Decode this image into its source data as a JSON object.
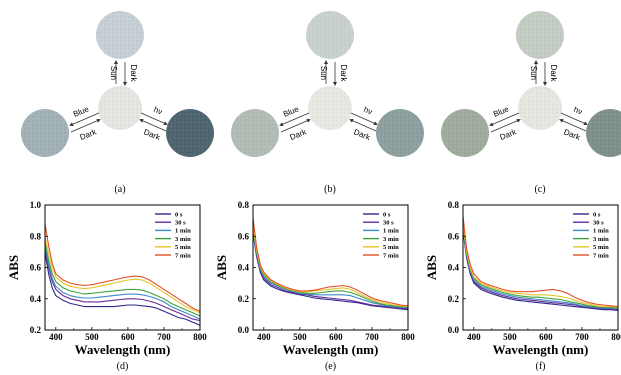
{
  "photo_panels": [
    {
      "label": "(a)",
      "colors": {
        "top": "#c6d0d5",
        "center": "#e5e5e1",
        "left": "#a2b2b7",
        "right": "#4f6670"
      },
      "arrows": {
        "up": "Sun",
        "down": "Dark",
        "left_top": "Blue",
        "left_bottom": "Dark",
        "right_top": "hν",
        "right_bottom": "Dark"
      }
    },
    {
      "label": "(b)",
      "colors": {
        "top": "#c9d2cc",
        "center": "#e8e9e3",
        "left": "#b1bdb5",
        "right": "#8ea0a0"
      },
      "arrows": {
        "up": "Sun",
        "down": "Dark",
        "left_top": "Blue",
        "left_bottom": "Dark",
        "right_top": "hν",
        "right_bottom": "Dark"
      }
    },
    {
      "label": "(c)",
      "colors": {
        "top": "#c4cdc3",
        "center": "#e7e7e2",
        "left": "#a0ad9e",
        "right": "#7f918d"
      },
      "arrows": {
        "up": "Sun",
        "down": "Dark",
        "left_top": "Blue",
        "left_bottom": "Dark",
        "right_top": "hν",
        "right_bottom": "Dark"
      }
    }
  ],
  "chart_data": [
    {
      "type": "line",
      "panel_label": "(d)",
      "xlabel": "Wavelength (nm)",
      "ylabel": "ABS",
      "xlim": [
        370,
        800
      ],
      "ylim": [
        0.2,
        1.0
      ],
      "xticks": [
        "400",
        "500",
        "600",
        "700",
        "800"
      ],
      "yticks": [
        "0.2",
        "0.4",
        "0.6",
        "0.8",
        "1.0"
      ],
      "legend_position": "top-right",
      "x": [
        370,
        380,
        390,
        400,
        420,
        440,
        460,
        480,
        500,
        520,
        540,
        560,
        580,
        600,
        620,
        640,
        660,
        680,
        700,
        720,
        740,
        760,
        780,
        800
      ],
      "series": [
        {
          "name": "0 s",
          "color": "#2b2b8c",
          "values": [
            0.7,
            0.56,
            0.47,
            0.42,
            0.39,
            0.37,
            0.36,
            0.35,
            0.35,
            0.35,
            0.35,
            0.35,
            0.355,
            0.36,
            0.36,
            0.355,
            0.35,
            0.34,
            0.32,
            0.3,
            0.28,
            0.27,
            0.25,
            0.23
          ]
        },
        {
          "name": "30 s",
          "color": "#6a2c9a",
          "values": [
            0.72,
            0.6,
            0.51,
            0.46,
            0.42,
            0.4,
            0.39,
            0.38,
            0.38,
            0.38,
            0.385,
            0.39,
            0.395,
            0.4,
            0.4,
            0.395,
            0.385,
            0.37,
            0.35,
            0.33,
            0.31,
            0.29,
            0.27,
            0.26
          ]
        },
        {
          "name": "1 min",
          "color": "#3f8ac9",
          "values": [
            0.74,
            0.62,
            0.53,
            0.48,
            0.44,
            0.42,
            0.41,
            0.405,
            0.405,
            0.41,
            0.415,
            0.42,
            0.425,
            0.43,
            0.43,
            0.425,
            0.415,
            0.4,
            0.38,
            0.35,
            0.33,
            0.31,
            0.29,
            0.27
          ]
        },
        {
          "name": "3 min",
          "color": "#3ea23a",
          "values": [
            0.76,
            0.65,
            0.56,
            0.51,
            0.47,
            0.45,
            0.44,
            0.43,
            0.435,
            0.44,
            0.445,
            0.45,
            0.455,
            0.46,
            0.46,
            0.455,
            0.44,
            0.42,
            0.4,
            0.37,
            0.35,
            0.33,
            0.31,
            0.29
          ]
        },
        {
          "name": "5 min",
          "color": "#e6c32a",
          "values": [
            0.8,
            0.69,
            0.6,
            0.54,
            0.5,
            0.48,
            0.47,
            0.465,
            0.47,
            0.48,
            0.49,
            0.5,
            0.51,
            0.52,
            0.525,
            0.52,
            0.5,
            0.47,
            0.44,
            0.41,
            0.38,
            0.35,
            0.33,
            0.31
          ]
        },
        {
          "name": "7 min",
          "color": "#e4502a",
          "values": [
            0.88,
            0.74,
            0.63,
            0.56,
            0.52,
            0.5,
            0.49,
            0.485,
            0.49,
            0.5,
            0.51,
            0.52,
            0.53,
            0.54,
            0.545,
            0.54,
            0.52,
            0.49,
            0.46,
            0.43,
            0.4,
            0.37,
            0.34,
            0.32
          ]
        }
      ]
    },
    {
      "type": "line",
      "panel_label": "(e)",
      "xlabel": "Wavelength (nm)",
      "ylabel": "ABS",
      "xlim": [
        370,
        800
      ],
      "ylim": [
        0.0,
        0.8
      ],
      "xticks": [
        "400",
        "500",
        "600",
        "700",
        "800"
      ],
      "yticks": [
        "0.0",
        "0.2",
        "0.4",
        "0.6",
        "0.8"
      ],
      "legend_position": "top-right",
      "x": [
        370,
        380,
        390,
        400,
        420,
        440,
        460,
        480,
        500,
        520,
        540,
        560,
        580,
        600,
        620,
        640,
        660,
        680,
        700,
        720,
        740,
        760,
        780,
        800
      ],
      "series": [
        {
          "name": "0 s",
          "color": "#2b2b8c",
          "values": [
            0.62,
            0.47,
            0.37,
            0.32,
            0.28,
            0.26,
            0.245,
            0.235,
            0.225,
            0.215,
            0.205,
            0.2,
            0.195,
            0.19,
            0.185,
            0.18,
            0.175,
            0.165,
            0.155,
            0.15,
            0.145,
            0.14,
            0.135,
            0.13
          ]
        },
        {
          "name": "30 s",
          "color": "#6a2c9a",
          "values": [
            0.63,
            0.48,
            0.38,
            0.33,
            0.29,
            0.27,
            0.25,
            0.24,
            0.23,
            0.225,
            0.215,
            0.21,
            0.205,
            0.2,
            0.195,
            0.19,
            0.18,
            0.17,
            0.16,
            0.155,
            0.15,
            0.145,
            0.14,
            0.135
          ]
        },
        {
          "name": "1 min",
          "color": "#3f8ac9",
          "values": [
            0.64,
            0.49,
            0.39,
            0.34,
            0.3,
            0.28,
            0.26,
            0.245,
            0.235,
            0.23,
            0.225,
            0.225,
            0.225,
            0.225,
            0.225,
            0.22,
            0.205,
            0.19,
            0.175,
            0.165,
            0.155,
            0.15,
            0.145,
            0.14
          ]
        },
        {
          "name": "3 min",
          "color": "#3ea23a",
          "values": [
            0.65,
            0.5,
            0.4,
            0.35,
            0.31,
            0.285,
            0.265,
            0.25,
            0.24,
            0.235,
            0.235,
            0.24,
            0.245,
            0.25,
            0.25,
            0.24,
            0.225,
            0.205,
            0.185,
            0.17,
            0.16,
            0.155,
            0.15,
            0.145
          ]
        },
        {
          "name": "5 min",
          "color": "#e6c32a",
          "values": [
            0.67,
            0.51,
            0.41,
            0.36,
            0.315,
            0.29,
            0.27,
            0.255,
            0.245,
            0.245,
            0.25,
            0.255,
            0.26,
            0.265,
            0.27,
            0.26,
            0.24,
            0.215,
            0.195,
            0.18,
            0.17,
            0.16,
            0.155,
            0.15
          ]
        },
        {
          "name": "7 min",
          "color": "#e4502a",
          "values": [
            0.72,
            0.53,
            0.42,
            0.37,
            0.32,
            0.295,
            0.275,
            0.26,
            0.25,
            0.25,
            0.255,
            0.265,
            0.275,
            0.28,
            0.285,
            0.275,
            0.255,
            0.23,
            0.205,
            0.19,
            0.18,
            0.17,
            0.16,
            0.155
          ]
        }
      ]
    },
    {
      "type": "line",
      "panel_label": "(f)",
      "xlabel": "Wavelength (nm)",
      "ylabel": "ABS",
      "xlim": [
        370,
        800
      ],
      "ylim": [
        0.0,
        0.8
      ],
      "xticks": [
        "400",
        "500",
        "600",
        "700",
        "800"
      ],
      "yticks": [
        "0.0",
        "0.2",
        "0.4",
        "0.6",
        "0.8"
      ],
      "legend_position": "top-right",
      "x": [
        370,
        380,
        390,
        400,
        420,
        440,
        460,
        480,
        500,
        520,
        540,
        560,
        580,
        600,
        620,
        640,
        660,
        680,
        700,
        720,
        740,
        760,
        780,
        800
      ],
      "series": [
        {
          "name": "0 s",
          "color": "#2b2b8c",
          "values": [
            0.64,
            0.46,
            0.36,
            0.3,
            0.26,
            0.24,
            0.225,
            0.21,
            0.2,
            0.19,
            0.185,
            0.18,
            0.175,
            0.17,
            0.165,
            0.16,
            0.155,
            0.15,
            0.145,
            0.14,
            0.135,
            0.13,
            0.13,
            0.125
          ]
        },
        {
          "name": "30 s",
          "color": "#6a2c9a",
          "values": [
            0.65,
            0.47,
            0.37,
            0.31,
            0.27,
            0.25,
            0.235,
            0.22,
            0.21,
            0.2,
            0.195,
            0.19,
            0.185,
            0.18,
            0.175,
            0.17,
            0.165,
            0.16,
            0.15,
            0.145,
            0.14,
            0.135,
            0.135,
            0.13
          ]
        },
        {
          "name": "1 min",
          "color": "#3f8ac9",
          "values": [
            0.66,
            0.48,
            0.38,
            0.32,
            0.28,
            0.26,
            0.245,
            0.23,
            0.22,
            0.21,
            0.205,
            0.2,
            0.195,
            0.19,
            0.185,
            0.18,
            0.175,
            0.165,
            0.155,
            0.15,
            0.145,
            0.14,
            0.14,
            0.135
          ]
        },
        {
          "name": "3 min",
          "color": "#3ea23a",
          "values": [
            0.67,
            0.49,
            0.39,
            0.33,
            0.29,
            0.27,
            0.255,
            0.24,
            0.23,
            0.22,
            0.215,
            0.21,
            0.21,
            0.205,
            0.2,
            0.195,
            0.185,
            0.175,
            0.165,
            0.155,
            0.15,
            0.145,
            0.145,
            0.14
          ]
        },
        {
          "name": "5 min",
          "color": "#e6c32a",
          "values": [
            0.69,
            0.5,
            0.4,
            0.34,
            0.3,
            0.28,
            0.265,
            0.25,
            0.24,
            0.235,
            0.23,
            0.225,
            0.225,
            0.225,
            0.22,
            0.215,
            0.205,
            0.19,
            0.175,
            0.165,
            0.155,
            0.15,
            0.15,
            0.145
          ]
        },
        {
          "name": "7 min",
          "color": "#e4502a",
          "values": [
            0.73,
            0.52,
            0.42,
            0.36,
            0.31,
            0.29,
            0.275,
            0.26,
            0.25,
            0.245,
            0.245,
            0.245,
            0.25,
            0.255,
            0.26,
            0.25,
            0.235,
            0.21,
            0.19,
            0.175,
            0.165,
            0.16,
            0.155,
            0.15
          ]
        }
      ]
    }
  ]
}
